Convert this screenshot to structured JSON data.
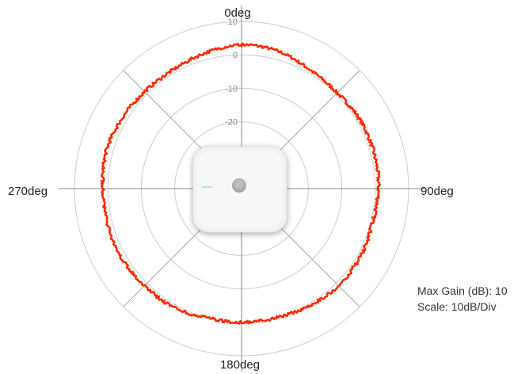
{
  "chart_data": {
    "type": "polar-line",
    "angle_labels": {
      "top": "0deg",
      "right": "90deg",
      "bottom": "180deg",
      "left": "270deg"
    },
    "ring_tick_labels": [
      "10",
      "0",
      "-10",
      "-20"
    ],
    "ring_levels_db": [
      10,
      0,
      -10,
      -20,
      -30,
      -40
    ],
    "r_range_db": [
      -40,
      10
    ],
    "spoke_angles_deg": [
      0,
      45,
      90,
      135,
      180,
      225,
      270,
      315
    ],
    "series": [
      {
        "color": "#ff2a00",
        "angles_deg": [
          0,
          15,
          30,
          45,
          60,
          75,
          90,
          105,
          120,
          135,
          150,
          165,
          180,
          195,
          210,
          225,
          240,
          255,
          270,
          285,
          300,
          315,
          330,
          345
        ],
        "gain_db": [
          3,
          2.5,
          1,
          0.5,
          1,
          1,
          1,
          0.5,
          1,
          1,
          0.5,
          0,
          0,
          0,
          1,
          1,
          1.5,
          1.5,
          1.5,
          2,
          1.5,
          1,
          1,
          2
        ]
      }
    ],
    "annotations": {
      "max_gain": "Max Gain (dB): 10",
      "scale": "Scale: 10dB/Div"
    },
    "colors": {
      "grid": "#cccccc",
      "trace": "#ff2a00",
      "device": "#f0f0f0"
    },
    "device_icon": "access-point-device"
  }
}
